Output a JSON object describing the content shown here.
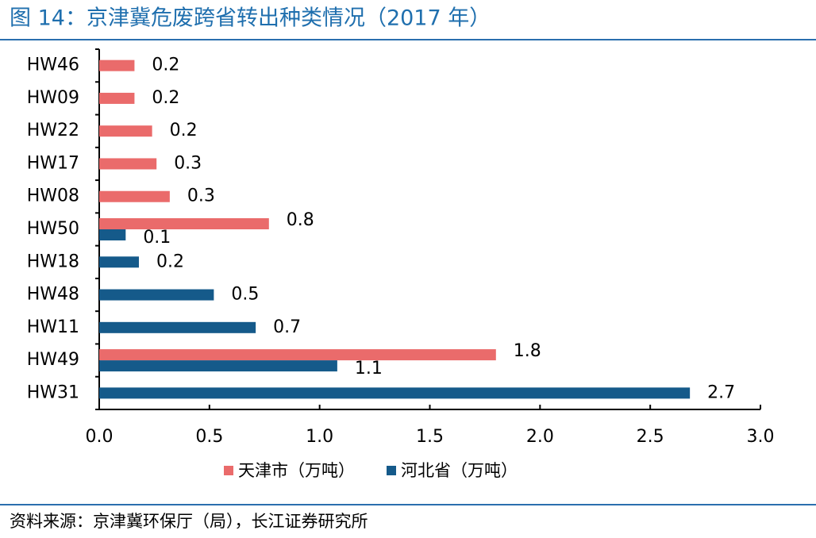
{
  "chart_data": {
    "type": "hbar",
    "title": "图 14：京津冀危废跨省转出种类情况（2017 年）",
    "source": "资料来源：京津冀环保厅（局），长江证券研究所",
    "categories": [
      "HW46",
      "HW09",
      "HW22",
      "HW17",
      "HW08",
      "HW50",
      "HW18",
      "HW48",
      "HW11",
      "HW49",
      "HW31"
    ],
    "series": [
      {
        "name": "天津市（万吨）",
        "color": "#ea6b6b",
        "values": [
          0.16,
          0.16,
          0.24,
          0.26,
          0.32,
          0.77,
          null,
          null,
          null,
          1.8,
          null
        ],
        "value_labels": [
          "0.2",
          "0.2",
          "0.2",
          "0.3",
          "0.3",
          "0.8",
          null,
          null,
          null,
          "1.8",
          null
        ]
      },
      {
        "name": "河北省（万吨）",
        "color": "#155a8a",
        "values": [
          null,
          null,
          null,
          null,
          null,
          0.12,
          0.18,
          0.52,
          0.71,
          1.08,
          2.68
        ],
        "value_labels": [
          null,
          null,
          null,
          null,
          null,
          "0.1",
          "0.2",
          "0.5",
          "0.7",
          "1.1",
          "2.7"
        ]
      }
    ],
    "xlim": [
      0,
      3
    ],
    "xticks": [
      {
        "value": 0,
        "label": "0.0"
      },
      0.5,
      {
        "value": 1,
        "label": "1.0"
      },
      1.5,
      {
        "value": 2,
        "label": "2.0"
      },
      2.5,
      {
        "value": 3,
        "label": "3.0"
      }
    ],
    "legend": "bottom",
    "grid": false
  }
}
